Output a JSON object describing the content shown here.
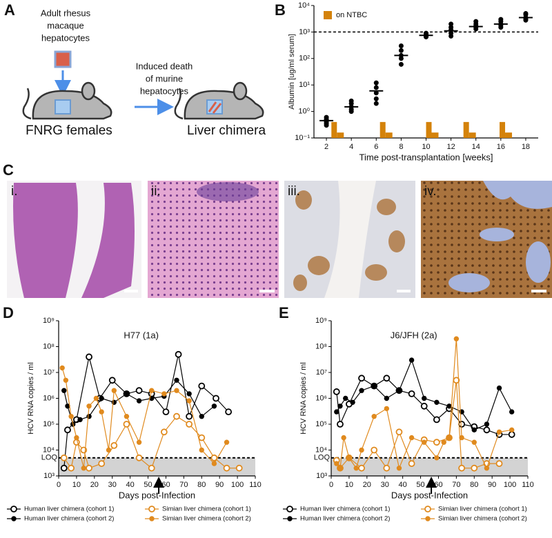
{
  "panel_labels": [
    "A",
    "B",
    "C",
    "D",
    "E"
  ],
  "diagram": {
    "donor": [
      "Adult rhesus",
      "macaque",
      "hepatocytes"
    ],
    "step": [
      "Induced death",
      "of murine",
      "hepatocytes"
    ],
    "host": "FNRG females",
    "result": "Liver chimera"
  },
  "histology": {
    "labels": [
      "i.",
      "ii.",
      "iii.",
      "iv."
    ]
  },
  "chart_data": [
    {
      "type": "scatter",
      "xlabel": "Time post-transplantation [weeks]",
      "ylabel": "Albumin [ug/ml serum]",
      "log_y": true,
      "xlim": [
        1,
        19
      ],
      "xticks": [
        2,
        4,
        6,
        8,
        10,
        12,
        14,
        16,
        18
      ],
      "ylim": [
        0.1,
        10000
      ],
      "yticks": [
        {
          "value": 0.1,
          "label": "10⁻¹"
        },
        {
          "value": 1,
          "label": "10⁰"
        },
        {
          "value": 10,
          "label": "10¹"
        },
        {
          "value": 100,
          "label": "10²"
        },
        {
          "value": 1000,
          "label": "10³"
        },
        {
          "value": 10000,
          "label": "10⁴"
        }
      ],
      "threshold": 1000,
      "series": [
        {
          "color": "#000000",
          "x": [
            2,
            2,
            2,
            2,
            2,
            2,
            4,
            4,
            4,
            4,
            4,
            6,
            6,
            6,
            6,
            6,
            8,
            8,
            8,
            8,
            8,
            10,
            10,
            10,
            10,
            10,
            12,
            12,
            12,
            12,
            12,
            14,
            14,
            14,
            14,
            14,
            16,
            16,
            16,
            16,
            16,
            18,
            18,
            18,
            18,
            18
          ],
          "values": [
            0.5,
            0.4,
            0.35,
            0.6,
            0.3,
            0.45,
            1.5,
            2,
            1,
            1.2,
            2.5,
            12,
            5,
            3,
            8,
            2,
            130,
            200,
            60,
            100,
            300,
            700,
            800,
            650,
            900,
            750,
            1200,
            700,
            2000,
            900,
            1500,
            1500,
            2000,
            1300,
            1700,
            2500,
            2000,
            1500,
            3000,
            2500,
            1800,
            3500,
            4500,
            3000,
            5000,
            2800
          ]
        }
      ],
      "means": {
        "x": [
          2,
          4,
          6,
          8,
          10,
          12,
          14,
          16,
          18
        ],
        "values": [
          0.45,
          1.5,
          6,
          130,
          750,
          1100,
          1600,
          2000,
          3500
        ]
      },
      "ntbc": {
        "name": "on NTBC",
        "color": "#d4820a",
        "x": [
          2.4,
          6.3,
          10,
          13,
          15.9
        ]
      }
    },
    {
      "type": "line",
      "title": "H77 (1a)",
      "xlabel": "Days post-Infection",
      "ylabel": "HCV RNA copies / ml",
      "log_y": true,
      "xlim": [
        0,
        110
      ],
      "xticks": [
        0,
        10,
        20,
        30,
        40,
        50,
        60,
        70,
        80,
        90,
        100,
        110
      ],
      "ylim": [
        1000,
        1000000000
      ],
      "yticks": [
        {
          "value": 1000,
          "label": "10³"
        },
        {
          "value": 10000,
          "label": "10⁴"
        },
        {
          "value": 100000,
          "label": "10⁵"
        },
        {
          "value": 1000000,
          "label": "10⁶"
        },
        {
          "value": 10000000,
          "label": "10⁷"
        },
        {
          "value": 100000000,
          "label": "10⁸"
        },
        {
          "value": 1000000000,
          "label": "10⁹"
        }
      ],
      "loq": {
        "value": 5000,
        "label": "LOQ"
      },
      "arrow_x": 56,
      "series": [
        {
          "name": "Human liver chimera (cohort 1)",
          "color": "#000000",
          "marker": "open",
          "x": [
            3,
            5,
            10,
            17,
            23,
            30,
            38,
            45,
            52,
            60,
            67,
            73,
            80,
            88,
            95
          ],
          "values": [
            2000,
            60000,
            150000,
            40000000,
            1000000,
            5000000,
            1500000,
            2000000,
            1500000,
            300000,
            50000000,
            200000,
            3000000,
            1000000,
            300000
          ]
        },
        {
          "name": "Human liver chimera (cohort 2)",
          "color": "#000000",
          "marker": "filled",
          "x": [
            3,
            5,
            8,
            12,
            17,
            24,
            31,
            38,
            45,
            52,
            59,
            66,
            73,
            80,
            87
          ],
          "values": [
            2000000,
            500000,
            100000,
            150000,
            200000,
            1000000,
            700000,
            1500000,
            800000,
            1000000,
            1200000,
            5000000,
            1500000,
            200000,
            500000
          ]
        },
        {
          "name": "Simian liver chimera (cohort 1)",
          "color": "#e08a1e",
          "marker": "open",
          "x": [
            3,
            7,
            10,
            14,
            17,
            24,
            31,
            38,
            45,
            52,
            59,
            66,
            73,
            80,
            87,
            94,
            101
          ],
          "values": [
            5000,
            2000,
            20000,
            10000,
            2000,
            3000,
            15000,
            100000,
            5000,
            2000,
            50000,
            200000,
            100000,
            30000,
            5000,
            2000,
            2000
          ]
        },
        {
          "name": "Simian liver chimera (cohort 2)",
          "color": "#e08a1e",
          "marker": "filled",
          "x": [
            2,
            4,
            7,
            10,
            14,
            17,
            21,
            24,
            28,
            31,
            38,
            45,
            52,
            59,
            66,
            73,
            80,
            87,
            94
          ],
          "values": [
            15000000,
            5000000,
            200000,
            30000,
            2000,
            500000,
            1000000,
            300000,
            10000,
            2000000,
            200000,
            20000,
            2000000,
            1500000,
            2000000,
            800000,
            10000,
            3000,
            20000
          ]
        }
      ]
    },
    {
      "type": "line",
      "title": "J6/JFH (2a)",
      "xlabel": "Days post-Infection",
      "ylabel": "HCV RNA copies / ml",
      "log_y": true,
      "xlim": [
        0,
        110
      ],
      "xticks": [
        0,
        10,
        20,
        30,
        40,
        50,
        60,
        70,
        80,
        90,
        100,
        110
      ],
      "ylim": [
        1000,
        1000000000
      ],
      "yticks": [
        {
          "value": 1000,
          "label": "10³"
        },
        {
          "value": 10000,
          "label": "10⁴"
        },
        {
          "value": 100000,
          "label": "10⁵"
        },
        {
          "value": 1000000,
          "label": "10⁶"
        },
        {
          "value": 10000000,
          "label": "10⁷"
        },
        {
          "value": 100000000,
          "label": "10⁸"
        },
        {
          "value": 1000000000,
          "label": "10⁹"
        }
      ],
      "loq": {
        "value": 5000,
        "label": "LOQ"
      },
      "arrow_x": 56,
      "series": [
        {
          "name": "Human liver chimera (cohort 1)",
          "color": "#000000",
          "marker": "open",
          "x": [
            3,
            5,
            10,
            17,
            24,
            31,
            38,
            45,
            52,
            59,
            66,
            73,
            80,
            87,
            94,
            101
          ],
          "values": [
            1800000,
            100000,
            600000,
            6000000,
            3000000,
            6000000,
            2000000,
            1500000,
            500000,
            150000,
            400000,
            100000,
            80000,
            60000,
            40000,
            40000
          ]
        },
        {
          "name": "Human liver chimera (cohort 2)",
          "color": "#000000",
          "marker": "filled",
          "x": [
            3,
            5,
            8,
            12,
            17,
            24,
            31,
            38,
            45,
            52,
            59,
            66,
            73,
            80,
            87,
            94,
            101
          ],
          "values": [
            300000,
            500000,
            1000000,
            700000,
            2000000,
            3000000,
            1000000,
            2000000,
            30000000,
            1000000,
            700000,
            500000,
            300000,
            60000,
            100000,
            2500000,
            300000
          ]
        },
        {
          "name": "Simian liver chimera (cohort 1)",
          "color": "#e08a1e",
          "marker": "open",
          "x": [
            3,
            5,
            10,
            17,
            24,
            31,
            38,
            45,
            52,
            59,
            66,
            70,
            73,
            80,
            87,
            94
          ],
          "values": [
            4000,
            2000,
            5000,
            2000,
            10000,
            2000,
            50000,
            3000,
            25000,
            20000,
            30000,
            5000000,
            2000,
            2000,
            3000,
            3000
          ]
        },
        {
          "name": "Simian liver chimera (cohort 2)",
          "color": "#e08a1e",
          "marker": "filled",
          "x": [
            3,
            5,
            7,
            10,
            14,
            17,
            24,
            31,
            38,
            45,
            52,
            59,
            63,
            66,
            70,
            73,
            80,
            87,
            94,
            101
          ],
          "values": [
            3000,
            2000,
            30000,
            5000,
            2000,
            10000,
            200000,
            400000,
            2000,
            30000,
            20000,
            5000,
            20000,
            30000,
            200000000,
            30000,
            20000,
            2000,
            50000,
            60000
          ]
        }
      ]
    }
  ]
}
